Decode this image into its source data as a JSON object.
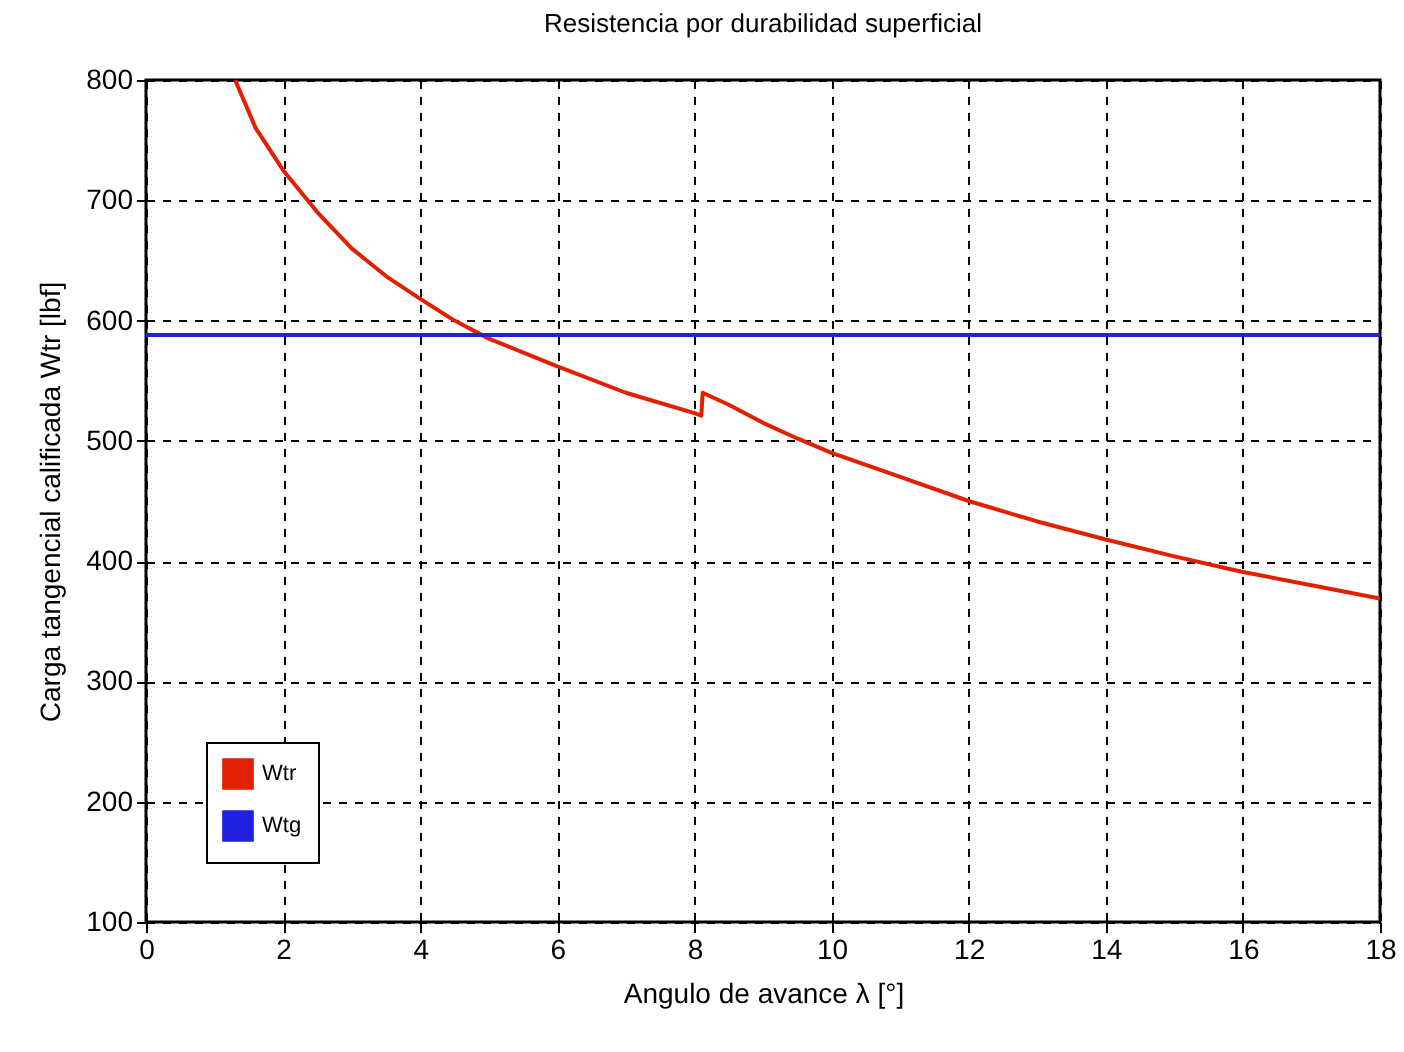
{
  "chart_data": {
    "type": "line",
    "title": "Resistencia por durabilidad superficial",
    "xlabel": "Angulo de avance λ [°]",
    "ylabel": "Carga tangencial calificada Wtr [lbf]",
    "xlim": [
      0,
      18
    ],
    "xticks": [
      0,
      2,
      4,
      6,
      8,
      10,
      12,
      14,
      16,
      18
    ],
    "ylim": [
      100,
      800
    ],
    "yticks": [
      100,
      200,
      300,
      400,
      500,
      600,
      700,
      800
    ],
    "grid": true,
    "legend": "bottom left",
    "marker": "none",
    "line_style": "solid",
    "series": [
      {
        "name": "Wtr",
        "color": "#e02000",
        "x": [
          1.3,
          1.6,
          2,
          2.5,
          3,
          3.5,
          4,
          4.5,
          5,
          6,
          7,
          8,
          8.1,
          8.12,
          8.5,
          9,
          9.5,
          10,
          11,
          12,
          13,
          14,
          15,
          16,
          17,
          18
        ],
        "values": [
          800,
          760,
          725,
          690,
          660,
          637,
          618,
          600,
          585,
          562,
          540,
          523,
          521,
          540,
          530,
          515,
          502,
          490,
          470,
          450,
          433,
          418,
          404,
          391,
          380,
          369
        ]
      },
      {
        "name": "Wtg",
        "color": "#2020e0",
        "x": [
          0,
          18
        ],
        "values": [
          588,
          588
        ]
      }
    ]
  }
}
